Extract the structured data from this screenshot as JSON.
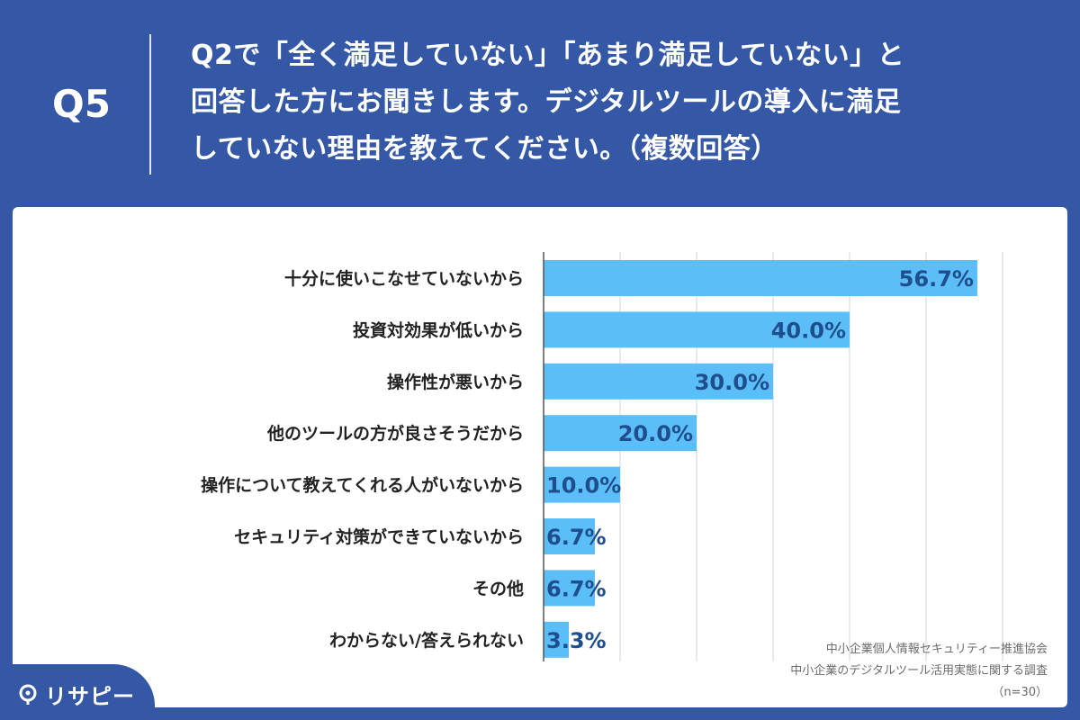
{
  "question": {
    "label": "Q5",
    "lines": [
      "Q2で「全く満足していない」「あまり満足していない」と",
      "回答した方にお聞きします。デジタルツールの導入に満足",
      "していない理由を教えてください。（複数回答）"
    ]
  },
  "chart_data": {
    "type": "bar",
    "orientation": "horizontal",
    "categories": [
      "十分に使いこなせていないから",
      "投資対効果が低いから",
      "操作性が悪いから",
      "他のツールの方が良さそうだから",
      "操作について教えてくれる人がいないから",
      "セキュリティ対策ができていないから",
      "その他",
      "わからない/答えられない"
    ],
    "values": [
      56.7,
      40.0,
      30.0,
      20.0,
      10.0,
      6.7,
      6.7,
      3.3
    ],
    "value_labels": [
      "56.7%",
      "40.0%",
      "30.0%",
      "20.0%",
      "10.0%",
      "6.7%",
      "6.7%",
      "3.3%"
    ],
    "xlim": [
      0,
      60
    ],
    "grid": true,
    "colors": {
      "bar": "#5bbef8",
      "label": "#1f4e8c",
      "grid": "#d6d6d6",
      "axis": "#555555"
    }
  },
  "source": {
    "org": "中小企業個人情報セキュリティー推進協会",
    "survey": "中小企業のデジタルツール活用実態に関する調査",
    "n": "（n=30）"
  },
  "brand": {
    "name": "リサピー",
    "icon": "pin-icon"
  }
}
